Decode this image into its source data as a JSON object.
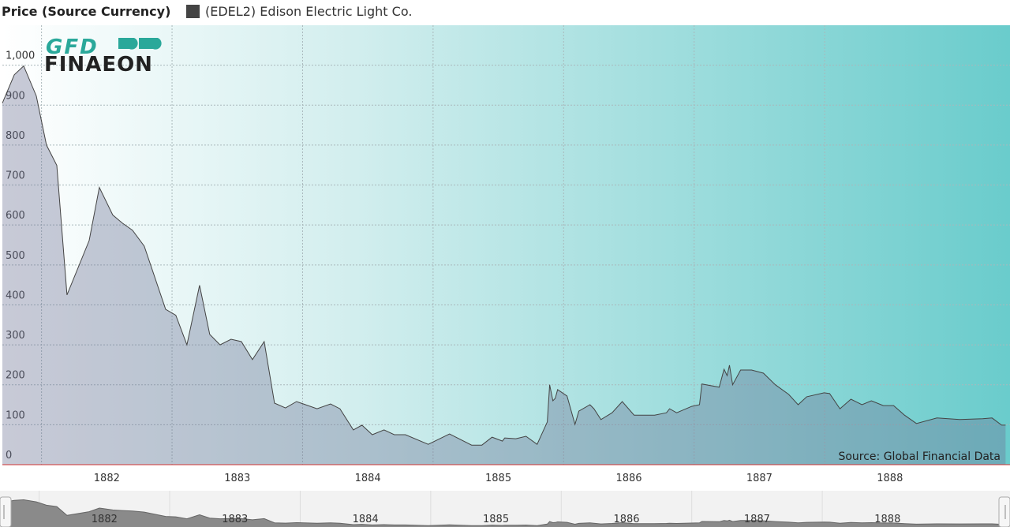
{
  "chart_data": {
    "type": "area",
    "title": "Price (Source Currency)",
    "source": "Source: Global Financial Data",
    "logo": {
      "top": "GFD",
      "bottom": "FINAEON"
    },
    "x": [
      1881.7,
      1881.791,
      1881.863,
      1881.96,
      1882.038,
      1882.117,
      1882.195,
      1882.365,
      1882.443,
      1882.546,
      1882.618,
      1882.697,
      1882.787,
      1882.951,
      1883.029,
      1883.114,
      1883.211,
      1883.289,
      1883.368,
      1883.452,
      1883.531,
      1883.616,
      1883.706,
      1883.785,
      1883.869,
      1883.954,
      1884.111,
      1884.214,
      1884.286,
      1884.389,
      1884.455,
      1884.534,
      1884.624,
      1884.703,
      1884.788,
      1884.963,
      1885.126,
      1885.295,
      1885.374,
      1885.452,
      1885.531,
      1885.549,
      1885.634,
      1885.712,
      1885.797,
      1885.875,
      1885.893,
      1885.918,
      1885.936,
      1885.954,
      1886.026,
      1886.087,
      1886.117,
      1886.202,
      1886.232,
      1886.286,
      1886.371,
      1886.449,
      1886.54,
      1886.697,
      1886.788,
      1886.812,
      1886.866,
      1886.981,
      1887.041,
      1887.059,
      1887.192,
      1887.229,
      1887.253,
      1887.271,
      1887.295,
      1887.356,
      1887.44,
      1887.531,
      1887.622,
      1887.724,
      1887.797,
      1887.863,
      1887.996,
      1888.038,
      1888.117,
      1888.201,
      1888.286,
      1888.358,
      1888.449,
      1888.528,
      1888.612,
      1888.703,
      1888.86,
      1889.035,
      1889.211,
      1889.283,
      1889.356,
      1889.386
    ],
    "series": [
      {
        "name": "(EDEL2) Edison Electric Light Co.",
        "color": "#444444",
        "values": [
          905,
          976,
          998,
          923,
          800,
          749,
          425,
          561,
          694,
          625,
          605,
          587,
          547,
          389,
          374,
          300,
          449,
          326,
          300,
          314,
          308,
          263,
          308,
          154,
          142,
          158,
          140,
          152,
          140,
          87,
          99,
          75,
          87,
          75,
          75,
          51,
          77,
          49,
          49,
          69,
          59,
          67,
          65,
          71,
          51,
          107,
          200,
          160,
          166,
          188,
          172,
          101,
          134,
          150,
          140,
          113,
          130,
          158,
          124,
          124,
          130,
          140,
          130,
          146,
          150,
          202,
          194,
          239,
          223,
          249,
          200,
          237,
          237,
          229,
          200,
          176,
          150,
          170,
          180,
          178,
          140,
          164,
          150,
          160,
          148,
          148,
          124,
          103,
          117,
          113,
          115,
          117,
          99,
          99
        ]
      }
    ],
    "xlim": [
      1881.7,
      1889.42
    ],
    "xticks": [
      1882,
      1883,
      1884,
      1885,
      1886,
      1887,
      1888
    ],
    "ylim": [
      0,
      1100
    ],
    "yticks": [
      0,
      100,
      200,
      300,
      400,
      500,
      600,
      700,
      800,
      900,
      {
        "value": 1000,
        "label": "1,000"
      }
    ],
    "grid": true
  }
}
